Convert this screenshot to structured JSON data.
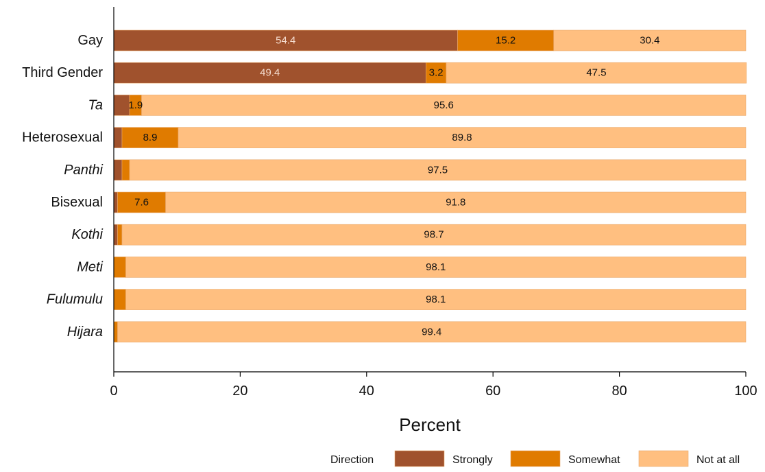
{
  "chart_data": {
    "type": "bar",
    "orientation": "horizontal",
    "stacked": true,
    "categories": [
      "Gay",
      "Third Gender",
      "Ta",
      "Heterosexual",
      "Panthi",
      "Bisexual",
      "Kothi",
      "Meti",
      "Fulumulu",
      "Hijara"
    ],
    "italic_categories": [
      "Ta",
      "Panthi",
      "Kothi",
      "Meti",
      "Fulumulu",
      "Hijara"
    ],
    "series": [
      {
        "name": "Strongly",
        "color": "#a0522d",
        "values": [
          54.4,
          49.4,
          2.5,
          1.3,
          1.3,
          0.6,
          0.6,
          0.0,
          0.0,
          0.0
        ],
        "labels": [
          "54.4",
          "49.4",
          "",
          "",
          "",
          "",
          "",
          "",
          "",
          ""
        ]
      },
      {
        "name": "Somewhat",
        "color": "#e07b00",
        "values": [
          15.2,
          3.2,
          1.9,
          8.9,
          1.2,
          7.6,
          0.7,
          1.9,
          1.9,
          0.6
        ],
        "labels": [
          "15.2",
          "3.2",
          "1.9",
          "8.9",
          "",
          "7.6",
          "",
          "",
          "",
          ""
        ]
      },
      {
        "name": "Not at all",
        "color": "#ffbf80",
        "values": [
          30.4,
          47.5,
          95.6,
          89.8,
          97.5,
          91.8,
          98.7,
          98.1,
          98.1,
          99.4
        ],
        "labels": [
          "30.4",
          "47.5",
          "95.6",
          "89.8",
          "97.5",
          "91.8",
          "98.7",
          "98.1",
          "98.1",
          "99.4"
        ]
      }
    ],
    "xlabel": "Percent",
    "xlim": [
      0,
      100
    ],
    "xticks": [
      "0",
      "20",
      "40",
      "60",
      "80",
      "100"
    ],
    "legend": {
      "title": "Direction",
      "position": "bottom-right",
      "entries": [
        "Strongly",
        "Somewhat",
        "Not at all"
      ]
    },
    "grid": false
  }
}
